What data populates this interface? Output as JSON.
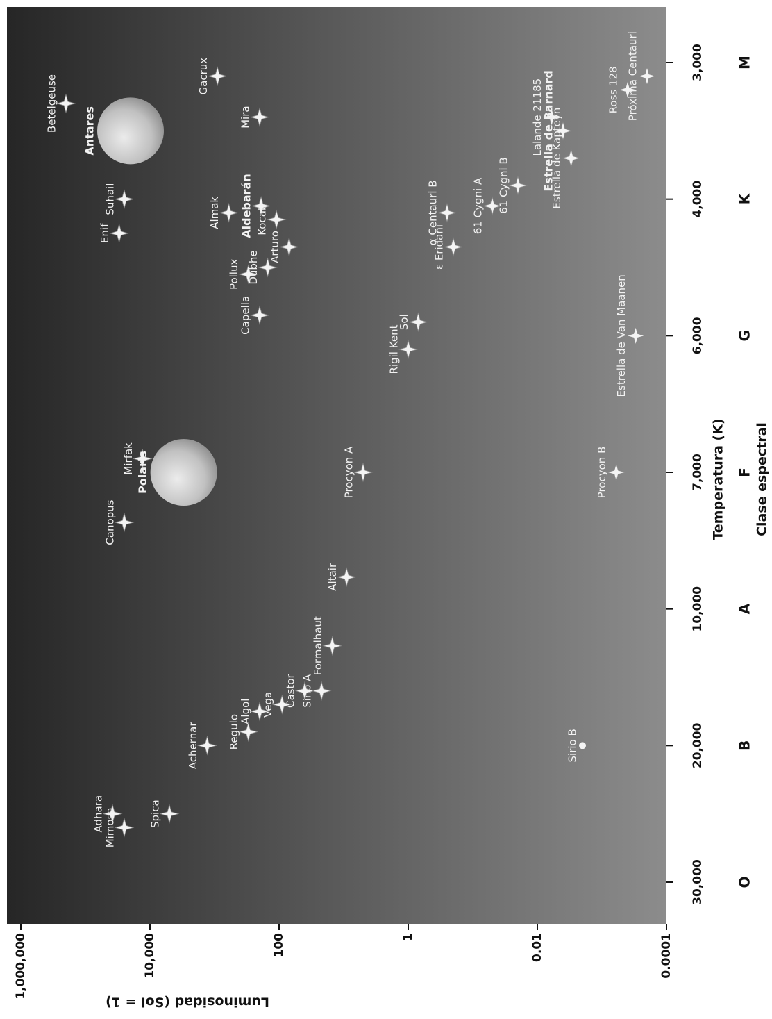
{
  "chart_data": {
    "type": "scatter",
    "xlabel": "Temperatura (K)",
    "xlabel2": "Clase espectral",
    "ylabel": "Luminosidad (Sol = 1)",
    "spectral_classes": [
      "O",
      "B",
      "A",
      "F",
      "G",
      "K",
      "M"
    ],
    "xlim": [
      30000,
      3000
    ],
    "xticks": [
      {
        "value": 30000,
        "label": "30,000"
      },
      {
        "value": 20000,
        "label": "20,000"
      },
      {
        "value": 10000,
        "label": "10,000"
      },
      {
        "value": 7000,
        "label": "7,000"
      },
      {
        "value": 6000,
        "label": "6,000"
      },
      {
        "value": 4000,
        "label": "4,000"
      },
      {
        "value": 3000,
        "label": "3,000"
      }
    ],
    "ylim": [
      0.0001,
      1000000
    ],
    "yticks": [
      0.0001,
      0.01,
      1,
      100,
      {
        "value": 10000,
        "label": "10,000"
      },
      {
        "value": 1000000,
        "label": "1,000,000"
      }
    ],
    "log_y": true,
    "color": "#f4f4f4",
    "points": [
      {
        "label": "Betelgeuse",
        "x": 3300,
        "y": 200000
      },
      {
        "label": "Antares",
        "x": 3500,
        "y": 20000,
        "bold": true,
        "marker": "sphere"
      },
      {
        "label": "Gacrux",
        "x": 3100,
        "y": 900
      },
      {
        "label": "Mira",
        "x": 3400,
        "y": 200
      },
      {
        "label": "Suhail",
        "x": 4000,
        "y": 25000
      },
      {
        "label": "Enif",
        "x": 4500,
        "y": 30000
      },
      {
        "label": "Almak",
        "x": 4200,
        "y": 600
      },
      {
        "label": "Aldebarán",
        "x": 4100,
        "y": 190,
        "bold": true
      },
      {
        "label": "Kocab",
        "x": 4300,
        "y": 110
      },
      {
        "label": "Arturo",
        "x": 4700,
        "y": 70
      },
      {
        "label": "Pollux",
        "x": 5100,
        "y": 300
      },
      {
        "label": "Dubhe",
        "x": 5000,
        "y": 150
      },
      {
        "label": "Capella",
        "x": 5700,
        "y": 200
      },
      {
        "label": "Rigil Kent",
        "x": 6100,
        "y": 1
      },
      {
        "label": "Sol",
        "x": 5800,
        "y": 0.7
      },
      {
        "label": "ε Eridani",
        "x": 4700,
        "y": 0.2
      },
      {
        "label": "α Centauri B",
        "x": 4200,
        "y": 0.25
      },
      {
        "label": "61 Cygni A",
        "x": 4100,
        "y": 0.05
      },
      {
        "label": "61 Cygni B",
        "x": 3900,
        "y": 0.02
      },
      {
        "label": "Lalande 21185",
        "x": 3400,
        "y": 0.006
      },
      {
        "label": "Estrella de Barnard",
        "x": 3500,
        "y": 0.004,
        "bold": true
      },
      {
        "label": "Estrella de Kapteyn",
        "x": 3700,
        "y": 0.003
      },
      {
        "label": "Ross 128",
        "x": 3200,
        "y": 0.0004
      },
      {
        "label": "Próxima Centauri",
        "x": 3100,
        "y": 0.0002
      },
      {
        "label": "Estrella de Van Maanen",
        "x": 6000,
        "y": 0.0003
      },
      {
        "label": "Procyon B",
        "x": 7000,
        "y": 0.0006
      },
      {
        "label": "Sirio B",
        "x": 20000,
        "y": 0.002,
        "marker": "dot"
      },
      {
        "label": "Procyon A",
        "x": 7000,
        "y": 5
      },
      {
        "label": "Altair",
        "x": 9300,
        "y": 9
      },
      {
        "label": "Formalhaut",
        "x": 12700,
        "y": 15
      },
      {
        "label": "Sirio A",
        "x": 16000,
        "y": 22
      },
      {
        "label": "Castor",
        "x": 16000,
        "y": 40
      },
      {
        "label": "Vega",
        "x": 17000,
        "y": 90
      },
      {
        "label": "Algol",
        "x": 17500,
        "y": 200
      },
      {
        "label": "Regulo",
        "x": 19000,
        "y": 300
      },
      {
        "label": "Achernar",
        "x": 20000,
        "y": 1300
      },
      {
        "label": "Adhara",
        "x": 25000,
        "y": 38000
      },
      {
        "label": "Mimosa",
        "x": 26000,
        "y": 25000
      },
      {
        "label": "Spica",
        "x": 25000,
        "y": 5000
      },
      {
        "label": "Canopus",
        "x": 8100,
        "y": 25000
      },
      {
        "label": "Mirfak",
        "x": 6900,
        "y": 13000
      },
      {
        "label": "Polaris",
        "x": 7000,
        "y": 3000,
        "bold": true,
        "marker": "sphere"
      }
    ]
  }
}
